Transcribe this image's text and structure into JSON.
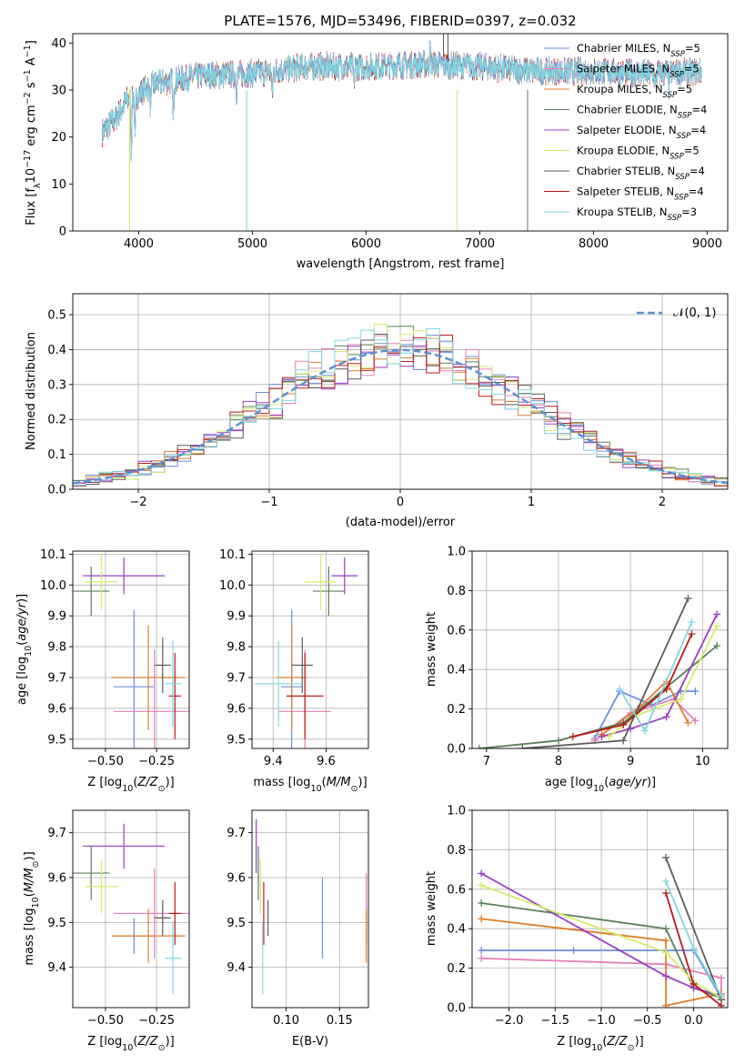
{
  "title": "PLATE=1576, MJD=53496, FIBERID=0397, z=0.032",
  "palette": [
    "#6a8fe0",
    "#e57fb8",
    "#e07d2a",
    "#5a7f5a",
    "#9a3ec8",
    "#d7ea6a",
    "#5b5b5b",
    "#b81a1a",
    "#7fd8e0"
  ],
  "chart_data": [
    {
      "id": "spectrum",
      "type": "line",
      "xlabel": "wavelength [Angstrom, rest frame]",
      "ylabel": "Flux [f_λ 10^-17 erg cm^-2 s^-1 A^-1]",
      "xlim": [
        3420,
        9180
      ],
      "ylim": [
        0,
        42
      ],
      "xticks": [
        4000,
        5000,
        6000,
        7000,
        8000,
        9000
      ],
      "yticks": [
        0,
        10,
        20,
        30,
        40
      ],
      "grid": false,
      "legend_position": "top-right",
      "legend": [
        "Chabrier MILES, N_SSP=5",
        "Salpeter MILES, N_SSP=5",
        "Kroupa MILES, N_SSP=5",
        "Chabrier ELODIE, N_SSP=4",
        "Salpeter ELODIE, N_SSP=4",
        "Kroupa ELODIE, N_SSP=5",
        "Chabrier STELIB, N_SSP=4",
        "Salpeter STELIB, N_SSP=4",
        "Kroupa STELIB, N_SSP=3"
      ],
      "continuum": [
        [
          3680,
          21
        ],
        [
          3800,
          24
        ],
        [
          3900,
          28
        ],
        [
          4000,
          29
        ],
        [
          4100,
          31
        ],
        [
          4300,
          32
        ],
        [
          4500,
          33
        ],
        [
          5000,
          33.5
        ],
        [
          5500,
          35
        ],
        [
          6000,
          35
        ],
        [
          6500,
          35.5
        ],
        [
          7000,
          35
        ],
        [
          7500,
          34
        ],
        [
          8000,
          34
        ],
        [
          8500,
          33.5
        ],
        [
          8950,
          34
        ]
      ],
      "features": [
        [
          3934,
          -12
        ],
        [
          3968,
          -10
        ],
        [
          4102,
          -5
        ],
        [
          4304,
          -9
        ],
        [
          4861,
          -4
        ],
        [
          5175,
          -6
        ],
        [
          5893,
          -4
        ],
        [
          6563,
          3
        ],
        [
          8542,
          -3
        ],
        [
          8662,
          -3
        ]
      ],
      "drops": [
        [
          3920,
          0,
          5
        ],
        [
          4950,
          0,
          8
        ],
        [
          6800,
          0,
          5
        ],
        [
          7420,
          0,
          3
        ]
      ]
    },
    {
      "id": "residuals",
      "type": "histogram",
      "xlabel": "(data-model)/error",
      "ylabel": "Normed distribution",
      "xlim": [
        -2.5,
        2.5
      ],
      "ylim": [
        0,
        0.56
      ],
      "xticks": [
        -2,
        -1,
        0,
        1,
        2
      ],
      "yticks": [
        0.0,
        0.1,
        0.2,
        0.3,
        0.4,
        0.5
      ],
      "grid": true,
      "bins": 50,
      "reference_label": "𝒩(0, 1)",
      "reference_color": "#5b93d6",
      "legend_position": "top-right"
    },
    {
      "id": "age_vs_Z",
      "type": "scatter",
      "xlabel": "Z [log10(Z/Z⊙)]",
      "ylabel": "age  [log10(age/yr)]",
      "xlim": [
        -0.66,
        -0.09
      ],
      "ylim": [
        9.47,
        10.11
      ],
      "xticks": [
        -0.5,
        -0.25
      ],
      "yticks": [
        9.5,
        9.6,
        9.7,
        9.8,
        9.9,
        10.0,
        10.1
      ],
      "grid": true,
      "points": [
        {
          "x": -0.36,
          "y": 9.67,
          "xerr": 0.1,
          "yerr": 0.25
        },
        {
          "x": -0.26,
          "y": 9.59,
          "xerr": 0.2,
          "yerr": 0.2
        },
        {
          "x": -0.29,
          "y": 9.7,
          "xerr": 0.18,
          "yerr": 0.17
        },
        {
          "x": -0.57,
          "y": 9.98,
          "xerr": 0.09,
          "yerr": 0.08
        },
        {
          "x": -0.41,
          "y": 10.03,
          "xerr": 0.2,
          "yerr": 0.06
        },
        {
          "x": -0.52,
          "y": 10.01,
          "xerr": 0.08,
          "yerr": 0.09
        },
        {
          "x": -0.22,
          "y": 9.74,
          "xerr": 0.04,
          "yerr": 0.09
        },
        {
          "x": -0.16,
          "y": 9.64,
          "xerr": 0.03,
          "yerr": 0.14
        },
        {
          "x": -0.17,
          "y": 9.68,
          "xerr": 0.04,
          "yerr": 0.14
        }
      ]
    },
    {
      "id": "age_vs_mass",
      "type": "scatter",
      "xlabel": "mass [log10(M/M⊙)]",
      "ylabel": "",
      "xlim": [
        9.32,
        9.76
      ],
      "ylim": [
        9.47,
        10.11
      ],
      "xticks": [
        9.4,
        9.6
      ],
      "yticks": [
        9.5,
        9.6,
        9.7,
        9.8,
        9.9,
        10.0,
        10.1
      ],
      "grid": true,
      "points": [
        {
          "x": 9.47,
          "y": 9.67,
          "xerr": 0.04,
          "yerr": 0.25
        },
        {
          "x": 9.52,
          "y": 9.59,
          "xerr": 0.1,
          "yerr": 0.2
        },
        {
          "x": 9.47,
          "y": 9.7,
          "xerr": 0.06,
          "yerr": 0.17
        },
        {
          "x": 9.61,
          "y": 9.98,
          "xerr": 0.06,
          "yerr": 0.08
        },
        {
          "x": 9.67,
          "y": 10.03,
          "xerr": 0.05,
          "yerr": 0.06
        },
        {
          "x": 9.58,
          "y": 10.01,
          "xerr": 0.06,
          "yerr": 0.09
        },
        {
          "x": 9.51,
          "y": 9.74,
          "xerr": 0.04,
          "yerr": 0.09
        },
        {
          "x": 9.52,
          "y": 9.64,
          "xerr": 0.07,
          "yerr": 0.14
        },
        {
          "x": 9.42,
          "y": 9.68,
          "xerr": 0.09,
          "yerr": 0.14
        }
      ]
    },
    {
      "id": "massweight_vs_age",
      "type": "line",
      "xlabel": "age  [log10(age/yr)]",
      "ylabel": "mass weight",
      "xlim": [
        6.8,
        10.35
      ],
      "ylim": [
        0,
        1
      ],
      "xticks": [
        7,
        8,
        9,
        10
      ],
      "yticks": [
        0.0,
        0.2,
        0.4,
        0.6,
        0.8,
        1.0
      ],
      "grid": true,
      "series": [
        {
          "x": [
            8.5,
            8.85,
            9.3,
            9.7,
            9.9
          ],
          "y": [
            0.05,
            0.29,
            0.22,
            0.29,
            0.29
          ]
        },
        {
          "x": [
            8.5,
            9.0,
            9.6,
            9.9
          ],
          "y": [
            0.04,
            0.18,
            0.25,
            0.14
          ]
        },
        {
          "x": [
            8.6,
            9.1,
            9.5,
            9.8
          ],
          "y": [
            0.07,
            0.2,
            0.34,
            0.13
          ]
        },
        {
          "x": [
            6.9,
            8.0,
            8.9,
            10.2
          ],
          "y": [
            0.0,
            0.04,
            0.13,
            0.52
          ]
        },
        {
          "x": [
            8.6,
            9.0,
            9.5,
            10.2
          ],
          "y": [
            0.06,
            0.1,
            0.16,
            0.68
          ]
        },
        {
          "x": [
            8.7,
            9.1,
            9.7,
            10.2
          ],
          "y": [
            0.06,
            0.17,
            0.25,
            0.62
          ]
        },
        {
          "x": [
            7.5,
            8.9,
            9.8
          ],
          "y": [
            0.0,
            0.04,
            0.76
          ]
        },
        {
          "x": [
            8.2,
            8.9,
            9.5,
            9.85
          ],
          "y": [
            0.06,
            0.12,
            0.3,
            0.58
          ]
        },
        {
          "x": [
            8.85,
            9.2,
            9.85
          ],
          "y": [
            0.3,
            0.09,
            0.64
          ]
        }
      ]
    },
    {
      "id": "mass_vs_Z",
      "type": "scatter",
      "xlabel": "Z [log10(Z/Z⊙)]",
      "ylabel": "mass [log10(M/M⊙)]",
      "xlim": [
        -0.66,
        -0.09
      ],
      "ylim": [
        9.31,
        9.75
      ],
      "xticks": [
        -0.5,
        -0.25
      ],
      "yticks": [
        9.4,
        9.5,
        9.6,
        9.7
      ],
      "grid": true,
      "points": [
        {
          "x": -0.36,
          "y": 9.47,
          "xerr": 0.1,
          "yerr": 0.04
        },
        {
          "x": -0.26,
          "y": 9.52,
          "xerr": 0.2,
          "yerr": 0.1
        },
        {
          "x": -0.29,
          "y": 9.47,
          "xerr": 0.18,
          "yerr": 0.06
        },
        {
          "x": -0.57,
          "y": 9.61,
          "xerr": 0.09,
          "yerr": 0.06
        },
        {
          "x": -0.41,
          "y": 9.67,
          "xerr": 0.2,
          "yerr": 0.05
        },
        {
          "x": -0.52,
          "y": 9.58,
          "xerr": 0.08,
          "yerr": 0.06
        },
        {
          "x": -0.22,
          "y": 9.51,
          "xerr": 0.04,
          "yerr": 0.04
        },
        {
          "x": -0.16,
          "y": 9.52,
          "xerr": 0.03,
          "yerr": 0.07
        },
        {
          "x": -0.17,
          "y": 9.42,
          "xerr": 0.04,
          "yerr": 0.08
        }
      ]
    },
    {
      "id": "mass_vs_ebv",
      "type": "scatter",
      "xlabel": "E(B-V)",
      "ylabel": "",
      "xlim": [
        0.068,
        0.177
      ],
      "ylim": [
        9.31,
        9.75
      ],
      "xticks": [
        0.1,
        0.15
      ],
      "yticks": [
        9.4,
        9.5,
        9.6,
        9.7
      ],
      "grid": true,
      "points": [
        {
          "x": 0.134,
          "y": 9.51,
          "yerr": 0.09
        },
        {
          "x": 0.175,
          "y": 9.53,
          "yerr": 0.08
        },
        {
          "x": 0.175,
          "y": 9.47,
          "yerr": 0.06
        },
        {
          "x": 0.074,
          "y": 9.61,
          "yerr": 0.06
        },
        {
          "x": 0.072,
          "y": 9.67,
          "yerr": 0.06
        },
        {
          "x": 0.076,
          "y": 9.58,
          "yerr": 0.06
        },
        {
          "x": 0.083,
          "y": 9.51,
          "yerr": 0.04
        },
        {
          "x": 0.079,
          "y": 9.52,
          "yerr": 0.07
        },
        {
          "x": 0.078,
          "y": 9.42,
          "yerr": 0.08
        }
      ]
    },
    {
      "id": "massweight_vs_Z",
      "type": "line",
      "xlabel": "Z [log10(Z/Z⊙)]",
      "ylabel": "mass weight",
      "xlim": [
        -2.4,
        0.37
      ],
      "ylim": [
        0,
        1
      ],
      "xticks": [
        -2.0,
        -1.5,
        -1.0,
        -0.5,
        0.0
      ],
      "yticks": [
        0.0,
        0.2,
        0.4,
        0.6,
        0.8,
        1.0
      ],
      "grid": true,
      "series": [
        {
          "x": [
            -2.3,
            -1.3,
            0.0,
            0.3
          ],
          "y": [
            0.29,
            0.29,
            0.29,
            0.05
          ]
        },
        {
          "x": [
            -2.3,
            -0.3,
            0.3,
            0.3
          ],
          "y": [
            0.25,
            0.22,
            0.15,
            0.04
          ]
        },
        {
          "x": [
            -2.3,
            -0.3,
            -0.3,
            0.3
          ],
          "y": [
            0.45,
            0.34,
            0.01,
            0.07
          ]
        },
        {
          "x": [
            -2.3,
            -0.3,
            0.0,
            0.3
          ],
          "y": [
            0.53,
            0.4,
            0.1,
            0.05
          ]
        },
        {
          "x": [
            -2.3,
            -0.3,
            0.0,
            0.3
          ],
          "y": [
            0.68,
            0.16,
            0.1,
            0.06
          ]
        },
        {
          "x": [
            -2.3,
            -0.3,
            0.0,
            0.3
          ],
          "y": [
            0.62,
            0.28,
            0.13,
            0.05
          ]
        },
        {
          "x": [
            -0.3,
            0.3
          ],
          "y": [
            0.76,
            0.04
          ]
        },
        {
          "x": [
            -0.3,
            0.0,
            0.3
          ],
          "y": [
            0.58,
            0.12,
            0.01
          ]
        },
        {
          "x": [
            -0.3,
            0.0,
            0.3
          ],
          "y": [
            0.64,
            0.3,
            0.06
          ]
        }
      ]
    }
  ]
}
